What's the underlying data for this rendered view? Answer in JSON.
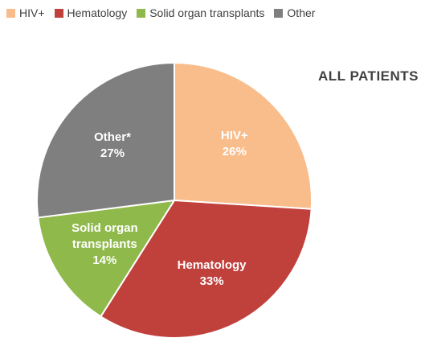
{
  "chart_data": {
    "type": "pie",
    "title": "ALL PATIENTS",
    "categories": [
      "HIV+",
      "Hematology",
      "Solid organ transplants",
      "Other"
    ],
    "values": [
      26,
      33,
      14,
      27
    ],
    "value_labels": [
      "26%",
      "33%",
      "14%",
      "27%"
    ],
    "slice_labels": [
      "HIV+",
      "Hematology",
      "Solid organ transplants",
      "Other*"
    ],
    "colors": [
      "#f9bd8b",
      "#c0403c",
      "#8fb94b",
      "#7f7f7f"
    ]
  }
}
